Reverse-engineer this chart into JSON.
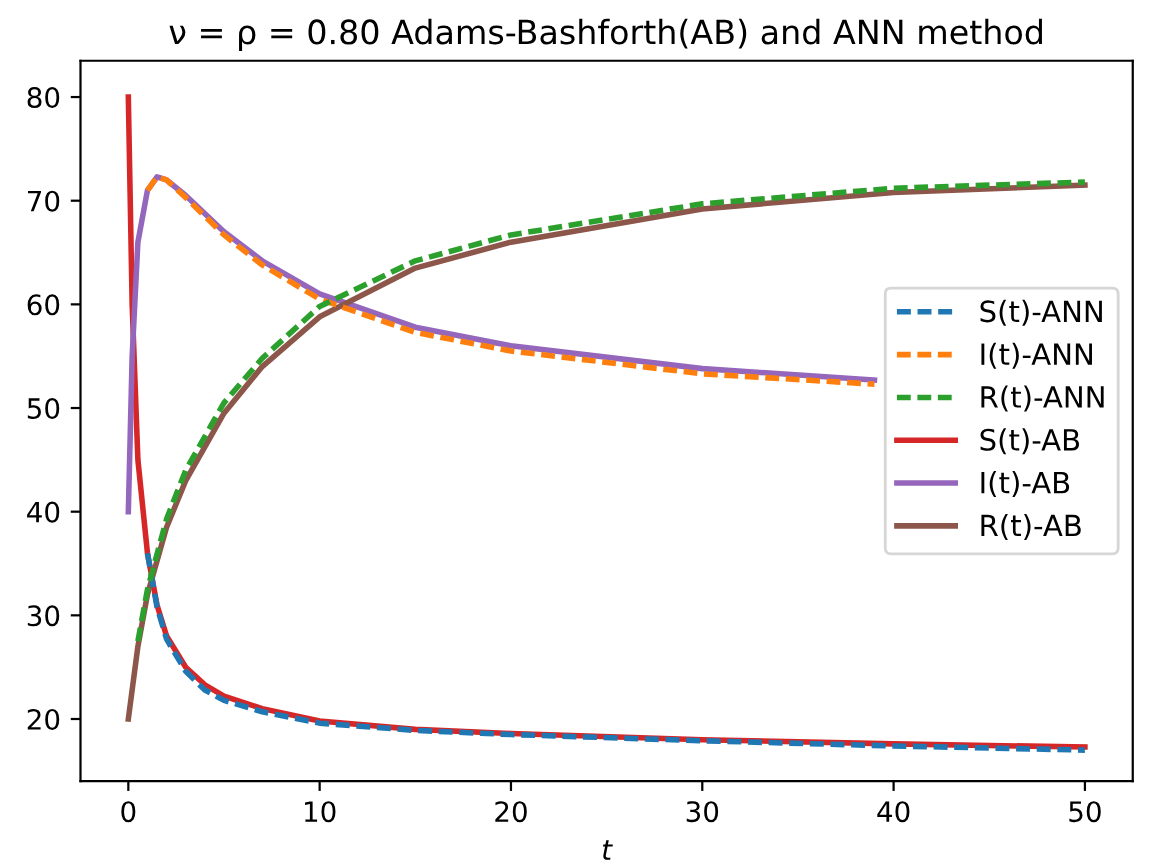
{
  "chart_data": {
    "type": "line",
    "title": "ν = ρ = 0.80 Adams-Bashforth(AB) and ANN method",
    "xlabel": "t",
    "xlim": [
      -2.5,
      52.5
    ],
    "ylim": [
      14,
      83.5
    ],
    "xticks": [
      0,
      10,
      20,
      30,
      40,
      50
    ],
    "yticks": [
      20,
      30,
      40,
      50,
      60,
      70,
      80
    ],
    "grid": false,
    "legend": "right",
    "marker": "none",
    "series": [
      {
        "name": "S(t)-ANN",
        "color": "#1f77b4",
        "line_style": "dashed",
        "x": [
          1,
          1.5,
          2,
          3,
          4,
          5,
          7,
          10,
          15,
          20,
          30,
          40,
          50
        ],
        "values": [
          36,
          30.8,
          27.7,
          24.6,
          22.8,
          21.8,
          20.7,
          19.6,
          18.9,
          18.5,
          17.9,
          17.4,
          17.0
        ]
      },
      {
        "name": "I(t)-ANN",
        "color": "#ff7f0e",
        "line_style": "dashed",
        "x": [
          1,
          1.5,
          2,
          3,
          5,
          7,
          10,
          15,
          20,
          30,
          39
        ],
        "values": [
          71,
          72.3,
          72,
          70.3,
          66.7,
          63.8,
          60.5,
          57.3,
          55.5,
          53.3,
          52.3
        ]
      },
      {
        "name": "R(t)-ANN",
        "color": "#2ca02c",
        "line_style": "dashed",
        "x": [
          0.5,
          1,
          2,
          3,
          5,
          7,
          10,
          15,
          20,
          30,
          40,
          50
        ],
        "values": [
          27.5,
          32.5,
          39.3,
          44,
          50.5,
          54.8,
          59.8,
          64.2,
          66.7,
          69.7,
          71.2,
          71.8
        ]
      },
      {
        "name": "S(t)-AB",
        "color": "#d62728",
        "line_style": "solid",
        "x": [
          0,
          0.2,
          0.5,
          1,
          1.5,
          2,
          3,
          4,
          5,
          7,
          10,
          15,
          20,
          30,
          40,
          50
        ],
        "values": [
          80,
          60,
          45,
          36,
          31,
          28,
          25,
          23.3,
          22.2,
          21,
          19.8,
          19,
          18.6,
          18,
          17.6,
          17.3
        ]
      },
      {
        "name": "I(t)-AB",
        "color": "#9467bd",
        "line_style": "solid",
        "x": [
          0,
          0.2,
          0.5,
          1,
          1.5,
          2,
          3,
          5,
          7,
          10,
          15,
          20,
          30,
          39
        ],
        "values": [
          40,
          55,
          66,
          71,
          72.3,
          72,
          70.5,
          67,
          64.2,
          61,
          57.8,
          56,
          53.8,
          52.7
        ]
      },
      {
        "name": "R(t)-AB",
        "color": "#8c564b",
        "line_style": "solid",
        "x": [
          0,
          0.5,
          1,
          2,
          3,
          5,
          7,
          10,
          15,
          20,
          30,
          40,
          50
        ],
        "values": [
          20,
          27,
          32,
          38.5,
          43,
          49.5,
          54,
          58.8,
          63.5,
          66,
          69.2,
          70.8,
          71.5
        ]
      }
    ]
  }
}
